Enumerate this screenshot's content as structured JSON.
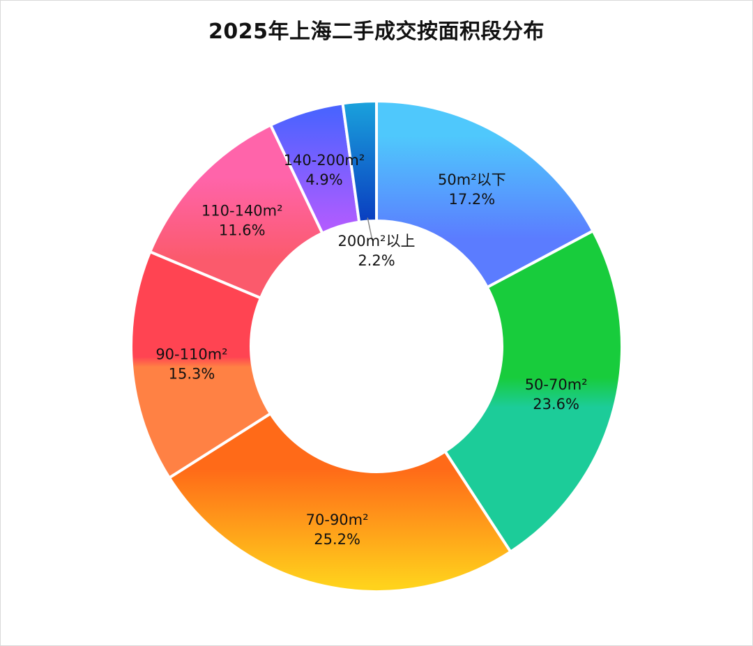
{
  "chart_data": {
    "type": "pie",
    "donut": true,
    "title": "2025年上海二手成交按面积段分布",
    "slices": [
      {
        "label": "50m²以下",
        "value": 17.2,
        "value_label": "17.2%",
        "color_start": "#4fc8fc",
        "color_end": "#5b7cff"
      },
      {
        "label": "50-70m²",
        "value": 23.6,
        "value_label": "23.6%",
        "color_start": "#18cc3c",
        "color_end": "#1ccc99"
      },
      {
        "label": "70-90m²",
        "value": 25.2,
        "value_label": "25.2%",
        "color_start": "#ff6a18",
        "color_end": "#ffd21c"
      },
      {
        "label": "90-110m²",
        "value": 15.3,
        "value_label": "15.3%",
        "color_start": "#ff4452",
        "color_end": "#ff8144"
      },
      {
        "label": "110-140m²",
        "value": 11.6,
        "value_label": "11.6%",
        "color_start": "#ff64aa",
        "color_end": "#fb5a6c"
      },
      {
        "label": "140-200m²",
        "value": 4.9,
        "value_label": "4.9%",
        "color_start": "#4b63ff",
        "color_end": "#b05cff"
      },
      {
        "label": "200m²以上",
        "value": 2.2,
        "value_label": "2.2%",
        "color_start": "#1aa2dc",
        "color_end": "#0a3ec0"
      }
    ],
    "legend": "none",
    "start_angle": "12 o'clock",
    "direction": "clockwise"
  }
}
